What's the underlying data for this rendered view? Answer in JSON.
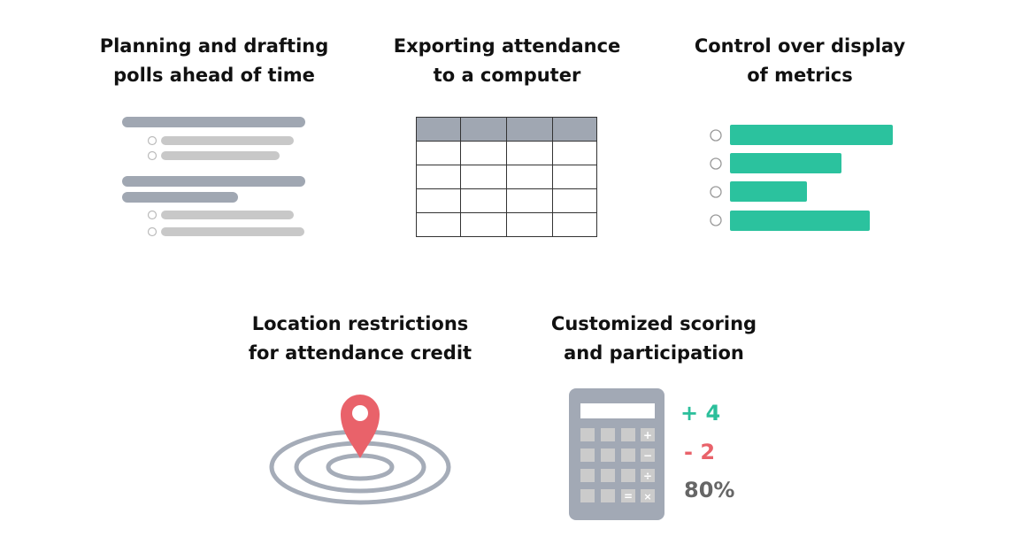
{
  "features": [
    {
      "title_line1": "Planning and drafting",
      "title_line2": "polls ahead of time",
      "icon": "poll-list-icon"
    },
    {
      "title_line1": "Exporting attendance",
      "title_line2": "to a computer",
      "icon": "spreadsheet-icon"
    },
    {
      "title_line1": "Control over display",
      "title_line2": "of metrics",
      "icon": "metrics-bars-icon"
    },
    {
      "title_line1": "Location restrictions",
      "title_line2": "for attendance credit",
      "icon": "location-pin-icon"
    },
    {
      "title_line1": "Customized scoring",
      "title_line2": "and participation",
      "icon": "calculator-icon"
    }
  ],
  "calculator": {
    "keys": [
      "+",
      "−",
      "÷",
      "=",
      "×"
    ]
  },
  "scores": [
    {
      "text": "+ 4",
      "color": "#2bbf9b"
    },
    {
      "text": "- 2",
      "color": "#e9626a"
    },
    {
      "text": "80%",
      "color": "#666666"
    }
  ],
  "colors": {
    "gray_bar": "#a0a7b2",
    "light_bar": "#c8c8c8",
    "teal": "#2bc29e",
    "red": "#e9626a",
    "calc_body": "#a2a9b5"
  }
}
